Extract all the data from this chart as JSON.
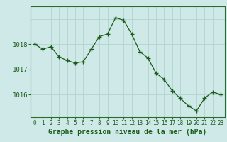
{
  "hours": [
    0,
    1,
    2,
    3,
    4,
    5,
    6,
    7,
    8,
    9,
    10,
    11,
    12,
    13,
    14,
    15,
    16,
    17,
    18,
    19,
    20,
    21,
    22,
    23
  ],
  "pressure": [
    1018.0,
    1017.8,
    1017.9,
    1017.5,
    1017.35,
    1017.25,
    1017.3,
    1017.8,
    1018.3,
    1018.4,
    1019.05,
    1018.95,
    1018.4,
    1017.7,
    1017.45,
    1016.85,
    1016.6,
    1016.15,
    1015.85,
    1015.55,
    1015.35,
    1015.85,
    1016.1,
    1016.0
  ],
  "bg_color": "#cfe9e9",
  "line_color": "#1a5c1a",
  "marker_color": "#1a5c1a",
  "grid_color": "#b0d4cc",
  "title": "Graphe pression niveau de la mer (hPa)",
  "ylabel_ticks": [
    1016,
    1017,
    1018
  ],
  "ylim": [
    1015.1,
    1019.5
  ],
  "xlim": [
    -0.5,
    23.5
  ],
  "tick_label_color": "#1a5c1a",
  "axis_color": "#2a6e2a",
  "xlabel_fontsize": 7,
  "ytick_fontsize": 6.5,
  "xtick_fontsize": 5.5
}
